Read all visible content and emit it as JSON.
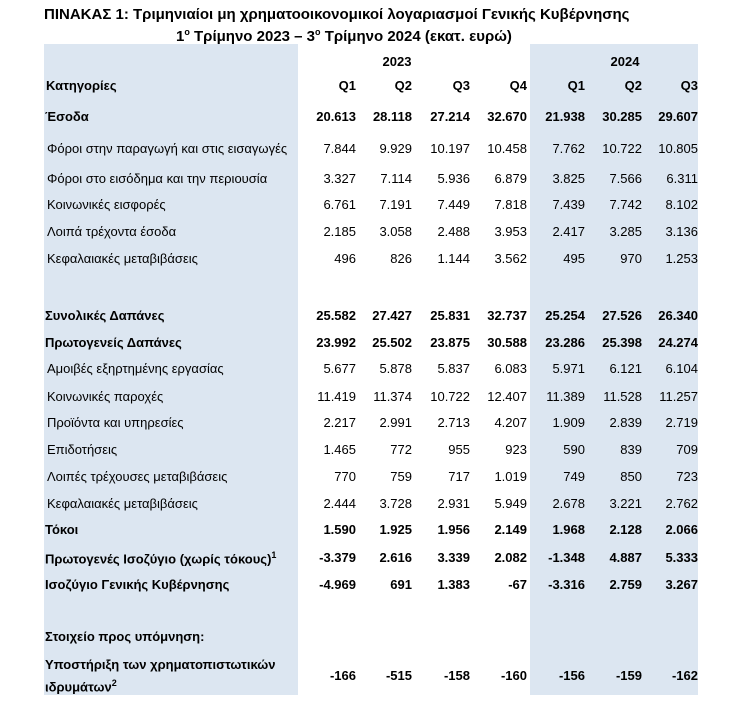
{
  "title": "ΠΙΝΑΚΑΣ 1: Τριμηνιαίοι μη χρηματοοικονομικοί λογαριασμοί Γενικής Κυβέρνησης",
  "subtitle_parts": [
    "1",
    "ο",
    " Τρίμηνο 2023 – 3",
    "ο",
    " Τρίμηνο 2024 (εκατ. ευρώ)"
  ],
  "table": {
    "category_header": "Κατηγορίες",
    "years": [
      {
        "label": "2023",
        "quarters": [
          "Q1",
          "Q2",
          "Q3",
          "Q4"
        ]
      },
      {
        "label": "2024",
        "quarters": [
          "Q1",
          "Q2",
          "Q3"
        ]
      }
    ],
    "rows": [
      {
        "label": "Έσοδα",
        "bold": true,
        "values": [
          "20.613",
          "28.118",
          "27.214",
          "32.670",
          "21.938",
          "30.285",
          "29.607"
        ]
      },
      {
        "label": "Φόροι στην παραγωγή και στις εισαγωγές",
        "bold": false,
        "values": [
          "7.844",
          "9.929",
          "10.197",
          "10.458",
          "7.762",
          "10.722",
          "10.805"
        ]
      },
      {
        "label": "Φόροι στο εισόδημα και την περιουσία",
        "bold": false,
        "values": [
          "3.327",
          "7.114",
          "5.936",
          "6.879",
          "3.825",
          "7.566",
          "6.311"
        ]
      },
      {
        "label": "Κοινωνικές εισφορές",
        "bold": false,
        "values": [
          "6.761",
          "7.191",
          "7.449",
          "7.818",
          "7.439",
          "7.742",
          "8.102"
        ]
      },
      {
        "label": "Λοιπά τρέχοντα έσοδα",
        "bold": false,
        "values": [
          "2.185",
          "3.058",
          "2.488",
          "3.953",
          "2.417",
          "3.285",
          "3.136"
        ]
      },
      {
        "label": "Κεφαλαιακές μεταβιβάσεις",
        "bold": false,
        "values": [
          "496",
          "826",
          "1.144",
          "3.562",
          "495",
          "970",
          "1.253"
        ]
      },
      {
        "label": "Συνολικές Δαπάνες",
        "bold": true,
        "values": [
          "25.582",
          "27.427",
          "25.831",
          "32.737",
          "25.254",
          "27.526",
          "26.340"
        ]
      },
      {
        "label": "Πρωτογενείς Δαπάνες",
        "bold": true,
        "values": [
          "23.992",
          "25.502",
          "23.875",
          "30.588",
          "23.286",
          "25.398",
          "24.274"
        ]
      },
      {
        "label": "Αμοιβές εξηρτημένης εργασίας",
        "bold": false,
        "values": [
          "5.677",
          "5.878",
          "5.837",
          "6.083",
          "5.971",
          "6.121",
          "6.104"
        ]
      },
      {
        "label": "Κοινωνικές παροχές",
        "bold": false,
        "values": [
          "11.419",
          "11.374",
          "10.722",
          "12.407",
          "11.389",
          "11.528",
          "11.257"
        ]
      },
      {
        "label": "Προϊόντα και υπηρεσίες",
        "bold": false,
        "values": [
          "2.217",
          "2.991",
          "2.713",
          "4.207",
          "1.909",
          "2.839",
          "2.719"
        ]
      },
      {
        "label": "Επιδοτήσεις",
        "bold": false,
        "values": [
          "1.465",
          "772",
          "955",
          "923",
          "590",
          "839",
          "709"
        ]
      },
      {
        "label": "Λοιπές τρέχουσες μεταβιβάσεις",
        "bold": false,
        "values": [
          "770",
          "759",
          "717",
          "1.019",
          "749",
          "850",
          "723"
        ]
      },
      {
        "label": "Κεφαλαιακές μεταβιβάσεις",
        "bold": false,
        "values": [
          "2.444",
          "3.728",
          "2.931",
          "5.949",
          "2.678",
          "3.221",
          "2.762"
        ]
      },
      {
        "label": "Τόκοι",
        "bold": true,
        "values": [
          "1.590",
          "1.925",
          "1.956",
          "2.149",
          "1.968",
          "2.128",
          "2.066"
        ]
      },
      {
        "label": "Πρωτογενές Ισοζύγιο (χωρίς τόκους)",
        "note": "1",
        "bold": true,
        "values": [
          "-3.379",
          "2.616",
          "3.339",
          "2.082",
          "-1.348",
          "4.887",
          "5.333"
        ]
      },
      {
        "label": "Ισοζύγιο Γενικής Κυβέρνησης",
        "bold": true,
        "values": [
          "-4.969",
          "691",
          "1.383",
          "-67",
          "-3.316",
          "2.759",
          "3.267"
        ]
      },
      {
        "label": "Στοιχείο προς υπόμνηση:",
        "bold": true
      },
      {
        "label": "Υποστήριξη των χρηματοπιστωτικών ιδρυμάτων",
        "note": "2",
        "bold": true,
        "values": [
          "-166",
          "-515",
          "-158",
          "-160",
          "-156",
          "-159",
          "-162"
        ]
      }
    ]
  }
}
